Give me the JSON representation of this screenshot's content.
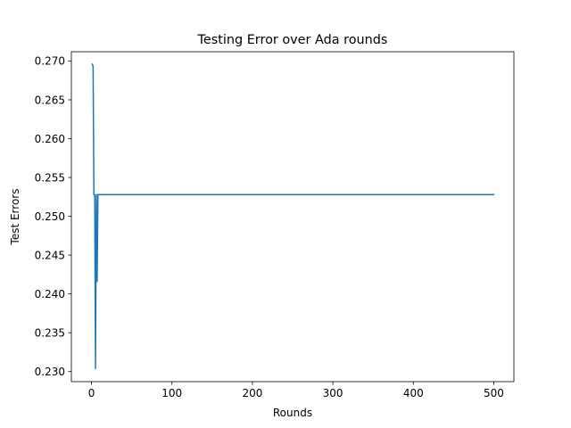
{
  "chart_data": {
    "type": "line",
    "title": "Testing Error over Ada rounds",
    "xlabel": "Rounds",
    "ylabel": "Test Errors",
    "xlim": [
      -25,
      525
    ],
    "ylim": [
      0.2287,
      0.2712
    ],
    "xticks": [
      0,
      100,
      200,
      300,
      400,
      500
    ],
    "xtick_labels": [
      "0",
      "100",
      "200",
      "300",
      "400",
      "500"
    ],
    "yticks": [
      0.23,
      0.235,
      0.24,
      0.245,
      0.25,
      0.255,
      0.26,
      0.265,
      0.27
    ],
    "ytick_labels": [
      "0.230",
      "0.235",
      "0.240",
      "0.245",
      "0.250",
      "0.255",
      "0.260",
      "0.265",
      "0.270"
    ],
    "grid": false,
    "series": [
      {
        "color": "#1f77b4",
        "x": [
          1,
          2,
          3,
          4,
          5,
          6,
          7,
          8,
          9,
          10,
          50,
          100,
          200,
          300,
          400,
          500
        ],
        "y": [
          0.2696,
          0.2693,
          0.2528,
          0.2528,
          0.2304,
          0.2528,
          0.2416,
          0.2528,
          0.2528,
          0.2528,
          0.2528,
          0.2528,
          0.2528,
          0.2528,
          0.2528,
          0.2528
        ]
      }
    ]
  }
}
